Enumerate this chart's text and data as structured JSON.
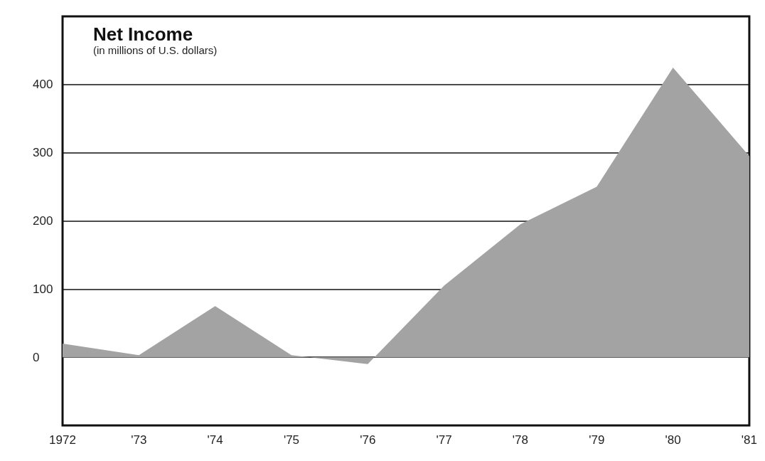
{
  "chart_data": {
    "type": "area",
    "title": "Net Income",
    "subtitle": "(in millions of U.S. dollars)",
    "categories": [
      "1972",
      "'73",
      "'74",
      "'75",
      "'76",
      "'77",
      "'78",
      "'79",
      "'80",
      "'81"
    ],
    "values": [
      20,
      3,
      75,
      3,
      -10,
      105,
      195,
      250,
      425,
      295
    ],
    "color": "#a3a3a3",
    "ylim": [
      -100,
      500
    ],
    "yticks": [
      0,
      100,
      200,
      300,
      400
    ],
    "grid": "y"
  }
}
